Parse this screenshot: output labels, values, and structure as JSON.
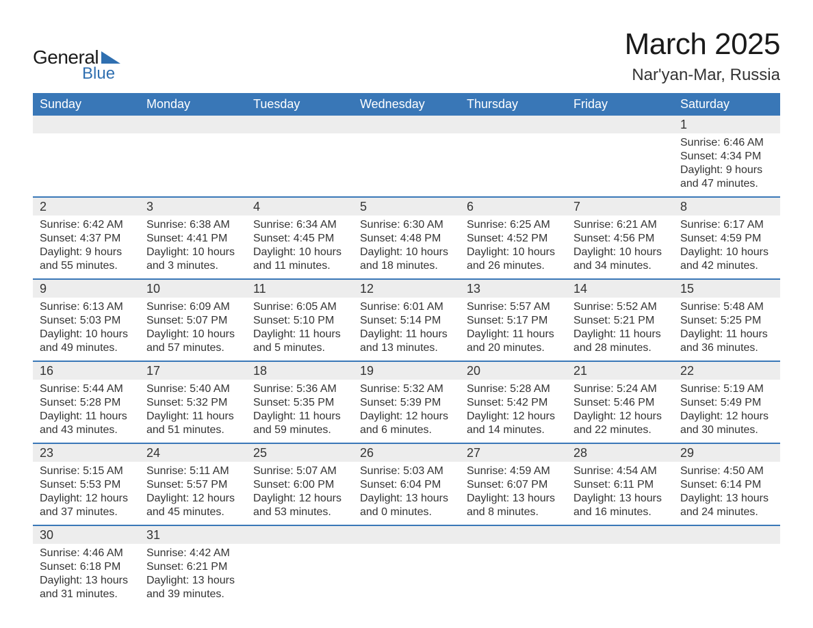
{
  "branding": {
    "word1": "General",
    "word2": "Blue",
    "triangle_color": "#2f6fb0",
    "text1_color": "#1a1a1a",
    "text2_color": "#2f6fb0"
  },
  "title": {
    "month_year": "March 2025",
    "location": "Nar'yan-Mar, Russia",
    "title_fontsize": 44,
    "location_fontsize": 24
  },
  "styling": {
    "header_bg": "#3977b7",
    "header_text_color": "#ffffff",
    "daynum_bg": "#ededed",
    "row_divider_color": "#3977b7",
    "body_text_color": "#333333",
    "page_bg": "#ffffff",
    "header_fontsize": 18,
    "daynum_fontsize": 18,
    "body_fontsize": 16
  },
  "weekdays": [
    "Sunday",
    "Monday",
    "Tuesday",
    "Wednesday",
    "Thursday",
    "Friday",
    "Saturday"
  ],
  "weeks": [
    [
      {
        "empty": true
      },
      {
        "empty": true
      },
      {
        "empty": true
      },
      {
        "empty": true
      },
      {
        "empty": true
      },
      {
        "empty": true
      },
      {
        "day": 1,
        "sunrise": "6:46 AM",
        "sunset": "4:34 PM",
        "daylight": "9 hours and 47 minutes."
      }
    ],
    [
      {
        "day": 2,
        "sunrise": "6:42 AM",
        "sunset": "4:37 PM",
        "daylight": "9 hours and 55 minutes."
      },
      {
        "day": 3,
        "sunrise": "6:38 AM",
        "sunset": "4:41 PM",
        "daylight": "10 hours and 3 minutes."
      },
      {
        "day": 4,
        "sunrise": "6:34 AM",
        "sunset": "4:45 PM",
        "daylight": "10 hours and 11 minutes."
      },
      {
        "day": 5,
        "sunrise": "6:30 AM",
        "sunset": "4:48 PM",
        "daylight": "10 hours and 18 minutes."
      },
      {
        "day": 6,
        "sunrise": "6:25 AM",
        "sunset": "4:52 PM",
        "daylight": "10 hours and 26 minutes."
      },
      {
        "day": 7,
        "sunrise": "6:21 AM",
        "sunset": "4:56 PM",
        "daylight": "10 hours and 34 minutes."
      },
      {
        "day": 8,
        "sunrise": "6:17 AM",
        "sunset": "4:59 PM",
        "daylight": "10 hours and 42 minutes."
      }
    ],
    [
      {
        "day": 9,
        "sunrise": "6:13 AM",
        "sunset": "5:03 PM",
        "daylight": "10 hours and 49 minutes."
      },
      {
        "day": 10,
        "sunrise": "6:09 AM",
        "sunset": "5:07 PM",
        "daylight": "10 hours and 57 minutes."
      },
      {
        "day": 11,
        "sunrise": "6:05 AM",
        "sunset": "5:10 PM",
        "daylight": "11 hours and 5 minutes."
      },
      {
        "day": 12,
        "sunrise": "6:01 AM",
        "sunset": "5:14 PM",
        "daylight": "11 hours and 13 minutes."
      },
      {
        "day": 13,
        "sunrise": "5:57 AM",
        "sunset": "5:17 PM",
        "daylight": "11 hours and 20 minutes."
      },
      {
        "day": 14,
        "sunrise": "5:52 AM",
        "sunset": "5:21 PM",
        "daylight": "11 hours and 28 minutes."
      },
      {
        "day": 15,
        "sunrise": "5:48 AM",
        "sunset": "5:25 PM",
        "daylight": "11 hours and 36 minutes."
      }
    ],
    [
      {
        "day": 16,
        "sunrise": "5:44 AM",
        "sunset": "5:28 PM",
        "daylight": "11 hours and 43 minutes."
      },
      {
        "day": 17,
        "sunrise": "5:40 AM",
        "sunset": "5:32 PM",
        "daylight": "11 hours and 51 minutes."
      },
      {
        "day": 18,
        "sunrise": "5:36 AM",
        "sunset": "5:35 PM",
        "daylight": "11 hours and 59 minutes."
      },
      {
        "day": 19,
        "sunrise": "5:32 AM",
        "sunset": "5:39 PM",
        "daylight": "12 hours and 6 minutes."
      },
      {
        "day": 20,
        "sunrise": "5:28 AM",
        "sunset": "5:42 PM",
        "daylight": "12 hours and 14 minutes."
      },
      {
        "day": 21,
        "sunrise": "5:24 AM",
        "sunset": "5:46 PM",
        "daylight": "12 hours and 22 minutes."
      },
      {
        "day": 22,
        "sunrise": "5:19 AM",
        "sunset": "5:49 PM",
        "daylight": "12 hours and 30 minutes."
      }
    ],
    [
      {
        "day": 23,
        "sunrise": "5:15 AM",
        "sunset": "5:53 PM",
        "daylight": "12 hours and 37 minutes."
      },
      {
        "day": 24,
        "sunrise": "5:11 AM",
        "sunset": "5:57 PM",
        "daylight": "12 hours and 45 minutes."
      },
      {
        "day": 25,
        "sunrise": "5:07 AM",
        "sunset": "6:00 PM",
        "daylight": "12 hours and 53 minutes."
      },
      {
        "day": 26,
        "sunrise": "5:03 AM",
        "sunset": "6:04 PM",
        "daylight": "13 hours and 0 minutes."
      },
      {
        "day": 27,
        "sunrise": "4:59 AM",
        "sunset": "6:07 PM",
        "daylight": "13 hours and 8 minutes."
      },
      {
        "day": 28,
        "sunrise": "4:54 AM",
        "sunset": "6:11 PM",
        "daylight": "13 hours and 16 minutes."
      },
      {
        "day": 29,
        "sunrise": "4:50 AM",
        "sunset": "6:14 PM",
        "daylight": "13 hours and 24 minutes."
      }
    ],
    [
      {
        "day": 30,
        "sunrise": "4:46 AM",
        "sunset": "6:18 PM",
        "daylight": "13 hours and 31 minutes."
      },
      {
        "day": 31,
        "sunrise": "4:42 AM",
        "sunset": "6:21 PM",
        "daylight": "13 hours and 39 minutes."
      },
      {
        "empty": true
      },
      {
        "empty": true
      },
      {
        "empty": true
      },
      {
        "empty": true
      },
      {
        "empty": true
      }
    ]
  ],
  "labels": {
    "sunrise": "Sunrise: ",
    "sunset": "Sunset: ",
    "daylight": "Daylight: "
  }
}
